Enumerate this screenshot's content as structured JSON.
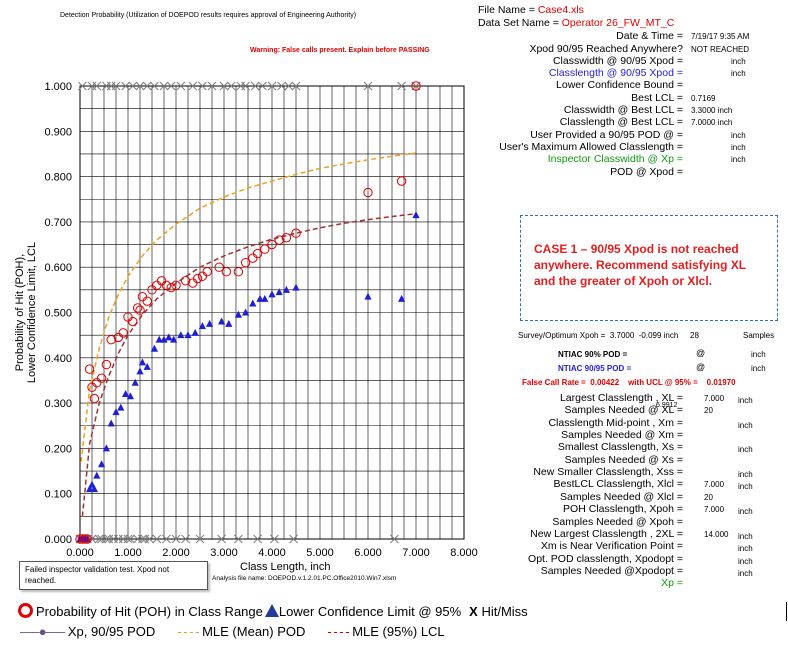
{
  "header": {
    "title": "Detection Probability   (Utilization of DOEPOD  results  requires approval of Engineering  Authority)",
    "warning": "Warning:  False calls present. Explain before PASSING"
  },
  "file": {
    "file_name_label": "File Name = ",
    "file_name_value": "Case4.xls",
    "data_set_label": "Data Set Name = ",
    "data_set_value": "Operator 26_FW_MT_C"
  },
  "results": [
    {
      "label": "Date & Time =",
      "value": "7/19/17 9:35 AM",
      "color": "#000000"
    },
    {
      "label": "Xpod 90/95 Reached Anywhere?",
      "value": "NOT REACHED",
      "color": "#000000"
    },
    {
      "label": "Classwidth @ 90/95 Xpod =",
      "value": "inch",
      "color": "#000000"
    },
    {
      "label": "Classlength @ 90/95 Xpod =",
      "value": "inch",
      "color": "#1f1fd6"
    },
    {
      "label": "Lower Confidence Bound =",
      "value": "",
      "color": "#000000"
    },
    {
      "label": "Best LCL =",
      "value": "0.7169",
      "color": "#000000"
    },
    {
      "label": "Classwidth @ Best LCL =",
      "value": "3.3000  inch",
      "color": "#000000"
    },
    {
      "label": "Classlength @ Best LCL =",
      "value": "7.0000  inch",
      "color": "#000000"
    },
    {
      "label": "User Provided a 90/95 POD @ =",
      "value": "inch",
      "color": "#000000"
    },
    {
      "label": "User's Maximum Allowed Classlength =",
      "value": "inch",
      "color": "#000000"
    },
    {
      "label": "Inspector Classwidth @ Xp =",
      "value": "inch",
      "color": "#129a12"
    },
    {
      "label": "POD @ Xpod =",
      "value": "",
      "color": "#000000"
    }
  ],
  "case_note": "CASE 1 – 90/95 Xpod is not reached anywhere. Recommend satisfying XL and the greater of Xpoh or Xlcl.",
  "survey": {
    "label": "Survey/Optimum Xpoh =",
    "value": "3.7000",
    "slope": "-0.099 inch",
    "samples_count": "28",
    "samples_label": "Samples"
  },
  "ntiac": {
    "pod90_label": "NTIAC  90%  POD =",
    "pod90_at": "@",
    "pod90_unit": "inch",
    "pod9095_label": "NTIAC  90/95  POD =",
    "pod9095_at": "@",
    "pod9095_unit": "inch",
    "false_call_label": "False Call Rate =",
    "false_call_value": "0.00422",
    "ucl_label": "with UCL @ 95% =",
    "ucl_value": "0.01970"
  },
  "lengths": [
    {
      "label": "Largest Classlength , XL =",
      "value": "7.000",
      "unit": "inch"
    },
    {
      "label": "Samples Needed @ XL =",
      "value": "20",
      "unit": ""
    },
    {
      "label": "Classlength  Mid-point , Xm =",
      "value": "",
      "unit": "inch"
    },
    {
      "label": "Samples Needed @ Xm =",
      "value": "",
      "unit": ""
    },
    {
      "label": "Smallest Classlength, Xs =",
      "value": "",
      "unit": "inch"
    },
    {
      "label": "Samples Needed @ Xs =",
      "value": "",
      "unit": ""
    },
    {
      "label": "New Smaller Classlength, Xss =",
      "value": "",
      "unit": "inch"
    },
    {
      "label": "BestLCL Classlength, Xlcl =",
      "value": "7.000",
      "unit": "inch"
    },
    {
      "label": "Samples Needed @ Xlcl =",
      "value": "20",
      "unit": ""
    },
    {
      "label": "POH Classlength, Xpoh =",
      "value": "7.000",
      "unit": "inch"
    },
    {
      "label": "Samples Needed @ Xpoh =",
      "value": "",
      "unit": ""
    },
    {
      "label": "New Largest Classlength , 2XL =",
      "value": "14.000",
      "unit": "inch"
    },
    {
      "label": "Xm is Near Verification Point =",
      "value": "",
      "unit": "inch"
    },
    {
      "label": "Opt. POD classlength, Xpodopt =",
      "value": "",
      "unit": "inch"
    },
    {
      "label": "Samples Needed @Xpodopt =",
      "value": "",
      "unit": "inch"
    }
  ],
  "lengths_overlap": "6.9912",
  "xp_label": "Xp =",
  "fail_note": "Failed inspector validation test. Xpod not reached.",
  "analysis_file": "Analysis file name:   DOEPOD.v.1.2.01.PC.Office2010.Win7.xlsm",
  "legend": {
    "poh": "Probability of Hit (POH) in Class Range",
    "lcl": "Lower Confidence Limit @ 95%",
    "hit": "X",
    "hit_label": "Hit/Miss",
    "xp": "Xp, 90/95 POD",
    "mle_mean": "MLE (Mean) POD",
    "mle_lcl": "MLE (95%) LCL"
  },
  "colors": {
    "poh": "#e00000",
    "lcl": "#1f1fd6",
    "mle_mean": "#f0a020",
    "mle_lcl": "#a03030",
    "hitmiss": "#808080",
    "case_border": "#2e75b6"
  },
  "chart_data": {
    "type": "scatter",
    "title": "",
    "xlabel": "Class Length,        inch",
    "ylabel": "Probability of Hit (POH), Lower Confidence Limit, LCL",
    "xlim": [
      0,
      8
    ],
    "ylim": [
      0,
      1
    ],
    "x_ticks": [
      "0.000",
      "1.000",
      "2.000",
      "3.000",
      "4.000",
      "5.000",
      "6.000",
      "7.000",
      "8.000"
    ],
    "y_ticks": [
      "0.000",
      "0.100",
      "0.200",
      "0.300",
      "0.400",
      "0.500",
      "0.600",
      "0.700",
      "0.800",
      "0.900",
      "1.000"
    ],
    "grid": true,
    "series": [
      {
        "name": "Probability of Hit (POH) in Class Range",
        "marker": "circle",
        "x": [
          0.0,
          0.05,
          0.1,
          0.15,
          0.2,
          0.25,
          0.3,
          0.35,
          0.45,
          0.55,
          0.65,
          0.8,
          0.9,
          1.0,
          1.1,
          1.2,
          1.25,
          1.3,
          1.4,
          1.5,
          1.6,
          1.7,
          1.8,
          1.9,
          2.0,
          2.2,
          2.35,
          2.45,
          2.55,
          2.65,
          2.9,
          3.05,
          3.3,
          3.45,
          3.6,
          3.7,
          3.85,
          4.0,
          4.15,
          4.3,
          4.5,
          6.0,
          6.7,
          7.0
        ],
        "y": [
          0.0,
          0.0,
          0.0,
          0.0,
          0.375,
          0.335,
          0.31,
          0.345,
          0.355,
          0.385,
          0.44,
          0.445,
          0.455,
          0.49,
          0.48,
          0.51,
          0.505,
          0.535,
          0.525,
          0.55,
          0.56,
          0.57,
          0.56,
          0.555,
          0.56,
          0.57,
          0.565,
          0.575,
          0.58,
          0.59,
          0.6,
          0.59,
          0.59,
          0.61,
          0.62,
          0.63,
          0.64,
          0.65,
          0.66,
          0.665,
          0.675,
          0.765,
          0.79,
          1.0
        ]
      },
      {
        "name": "Lower Confidence Limit @ 95%",
        "marker": "triangle",
        "x": [
          0.0,
          0.05,
          0.1,
          0.15,
          0.2,
          0.25,
          0.3,
          0.35,
          0.45,
          0.55,
          0.65,
          0.75,
          0.85,
          0.95,
          1.05,
          1.15,
          1.25,
          1.3,
          1.4,
          1.55,
          1.65,
          1.75,
          1.85,
          1.95,
          2.1,
          2.25,
          2.4,
          2.55,
          2.7,
          2.95,
          3.1,
          3.3,
          3.45,
          3.6,
          3.75,
          3.85,
          4.0,
          4.15,
          4.3,
          4.5,
          6.0,
          6.7,
          7.0
        ],
        "y": [
          0.0,
          0.0,
          0.0,
          0.0,
          0.11,
          0.12,
          0.11,
          0.14,
          0.165,
          0.2,
          0.255,
          0.28,
          0.29,
          0.32,
          0.315,
          0.345,
          0.37,
          0.39,
          0.38,
          0.42,
          0.44,
          0.44,
          0.445,
          0.44,
          0.45,
          0.45,
          0.455,
          0.47,
          0.475,
          0.48,
          0.475,
          0.495,
          0.5,
          0.52,
          0.53,
          0.53,
          0.54,
          0.545,
          0.55,
          0.555,
          0.535,
          0.53,
          0.715
        ]
      },
      {
        "name": "Hit/Miss",
        "marker": "x",
        "hit_x": [
          0.05,
          0.25,
          0.35,
          0.55,
          0.65,
          0.75,
          0.95,
          1.1,
          1.25,
          1.4,
          1.55,
          1.75,
          1.9,
          2.1,
          2.35,
          2.55,
          2.75,
          3.0,
          3.15,
          3.35,
          3.45,
          3.65,
          3.8,
          4.0,
          4.2,
          4.35,
          4.5,
          6.0,
          6.7,
          7.0
        ],
        "miss_x": [
          0.0,
          0.05,
          0.15,
          0.25,
          0.4,
          0.45,
          0.55,
          0.6,
          0.7,
          0.8,
          0.9,
          1.0,
          1.05,
          1.2,
          1.3,
          1.35,
          1.45,
          1.6,
          1.8,
          2.0,
          2.2,
          2.5,
          2.95,
          3.3,
          3.7,
          4.05,
          4.45,
          6.55
        ]
      },
      {
        "name": "MLE (Mean) POD",
        "marker": "dashed-line",
        "x": [
          0.02,
          0.2,
          0.4,
          0.6,
          0.8,
          1.0,
          1.3,
          1.6,
          2.0,
          2.5,
          3.0,
          3.5,
          4.0,
          4.5,
          5.0,
          5.5,
          6.0,
          6.5,
          7.0
        ],
        "y": [
          0.17,
          0.33,
          0.42,
          0.49,
          0.54,
          0.58,
          0.625,
          0.66,
          0.695,
          0.73,
          0.755,
          0.775,
          0.79,
          0.805,
          0.818,
          0.828,
          0.837,
          0.845,
          0.852
        ]
      },
      {
        "name": "MLE (95%) LCL",
        "marker": "dashed-line",
        "x": [
          0.05,
          0.2,
          0.4,
          0.6,
          0.8,
          1.0,
          1.3,
          1.6,
          2.0,
          2.5,
          3.0,
          3.5,
          4.0,
          4.5,
          5.0,
          5.5,
          6.0,
          6.5,
          7.0
        ],
        "y": [
          0.05,
          0.21,
          0.3,
          0.36,
          0.41,
          0.45,
          0.495,
          0.53,
          0.565,
          0.6,
          0.625,
          0.645,
          0.662,
          0.675,
          0.687,
          0.697,
          0.705,
          0.712,
          0.718
        ]
      }
    ]
  }
}
